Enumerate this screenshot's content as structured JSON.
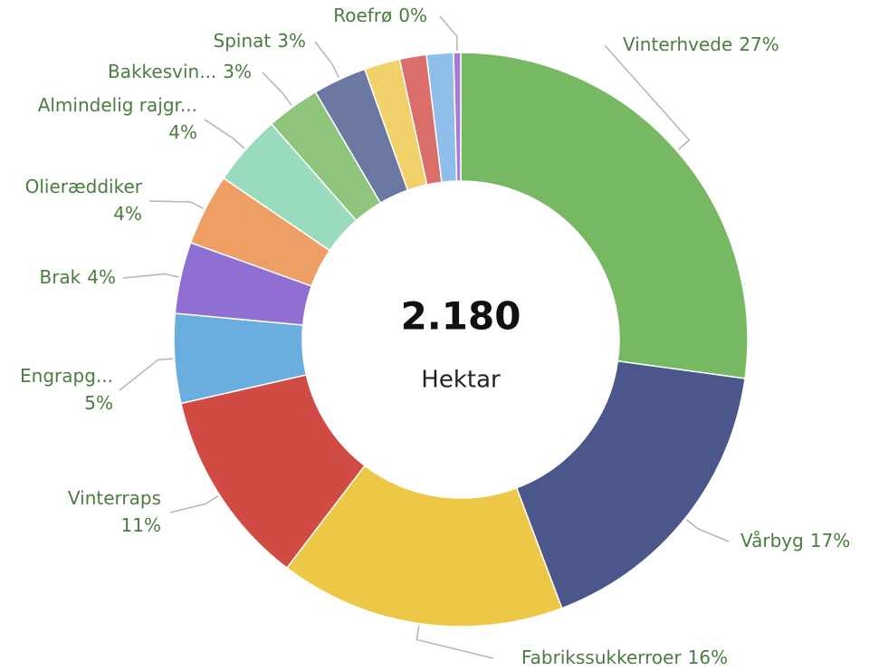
{
  "chart_data": {
    "type": "donut",
    "center_value": "2.180",
    "center_label": "Hektar",
    "categories": [
      "Vinterhvede",
      "Vårbyg",
      "Fabrikssukkerroer",
      "Vinterraps",
      "Engrapg...",
      "Brak",
      "Olieræddiker",
      "Almindelig rajgr...",
      "Bakkesvin...",
      "Spinat",
      null,
      null,
      null,
      "Roefrø"
    ],
    "values": [
      27,
      17,
      16,
      11,
      5,
      4,
      4,
      4,
      3,
      3,
      2,
      1.5,
      1.5,
      0.4
    ],
    "value_labels": [
      "27%",
      "17%",
      "16%",
      "11%",
      "5%",
      "4%",
      "4%",
      "4%",
      "3%",
      "3%",
      null,
      null,
      null,
      "0%"
    ],
    "colors": [
      "#77b862",
      "#4b578a",
      "#ecc846",
      "#cf4b43",
      "#6aaee0",
      "#8f6fd1",
      "#ee9f65",
      "#98dcbd",
      "#8fc47d",
      "#6b78a2",
      "#f1d26a",
      "#db6e6a",
      "#8ebee9",
      "#a77cd8"
    ]
  }
}
